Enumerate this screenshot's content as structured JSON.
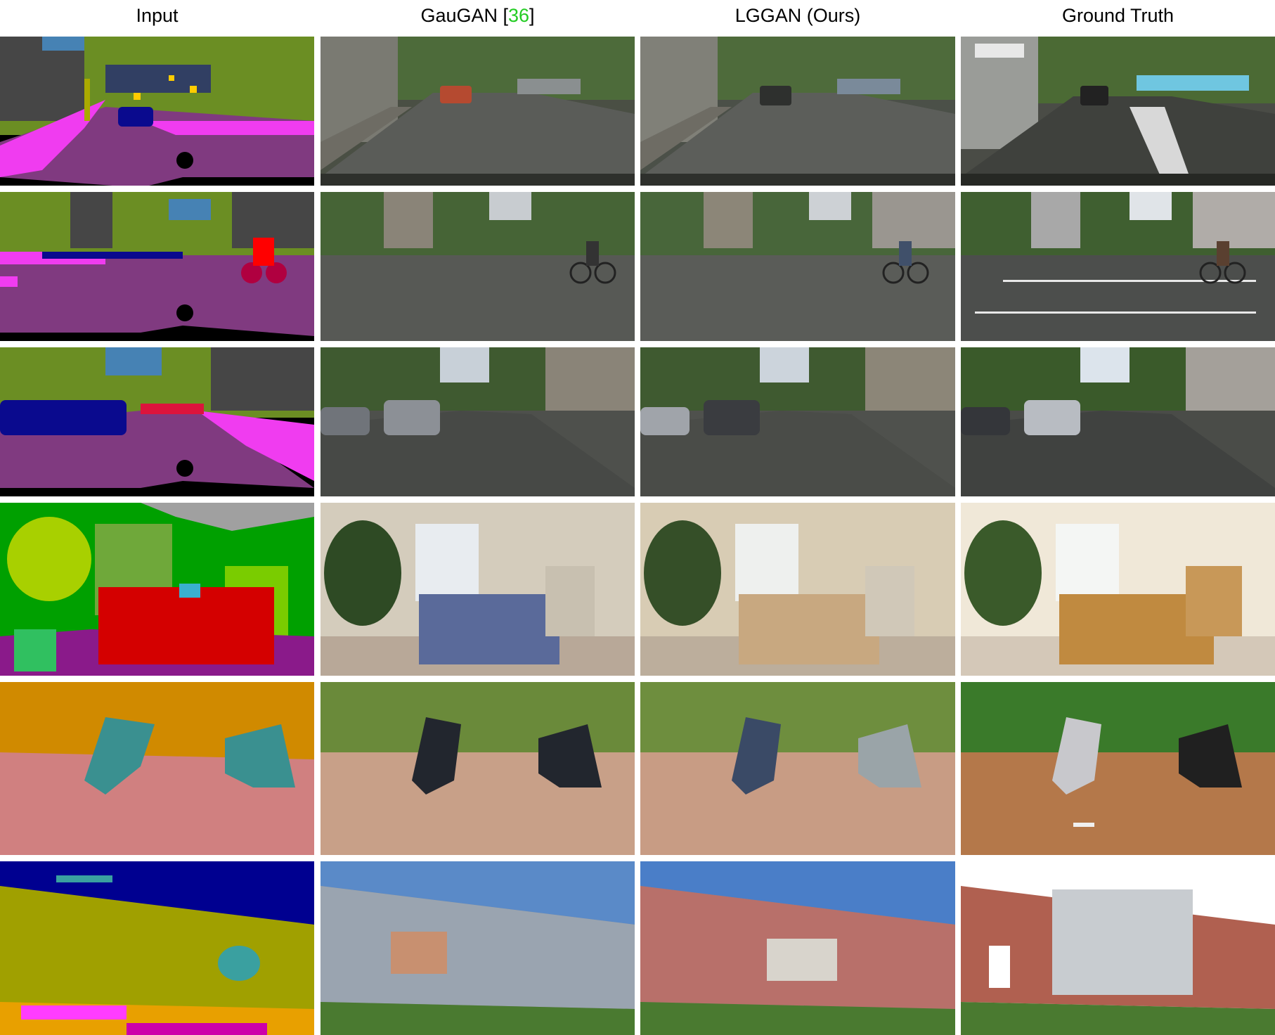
{
  "headers": {
    "input": "Input",
    "gaugan_prefix": "GauGAN [",
    "gaugan_ref": "36",
    "gaugan_suffix": "]",
    "lggan": "LGGAN (Ours)",
    "gt": "Ground Truth"
  },
  "rows": [
    {
      "scene": "street"
    },
    {
      "scene": "street-cyclist"
    },
    {
      "scene": "street-cars"
    },
    {
      "scene": "bedroom"
    },
    {
      "scene": "baseball"
    },
    {
      "scene": "townhouse"
    }
  ],
  "colors": {
    "ref_green": "#22cc22",
    "road_label": "#803a80",
    "sidewalk_label": "#f03cf0",
    "vegetation_label": "#6b8e23",
    "building_label": "#464646",
    "car_label": "#0a0a8e",
    "sky_label": "#4682b4"
  }
}
